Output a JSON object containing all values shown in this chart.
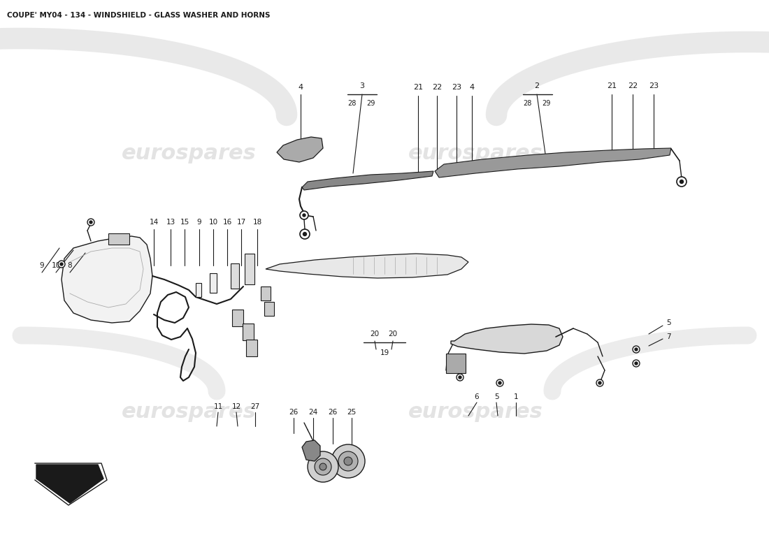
{
  "title": "COUPE' MY04 - 134 - WINDSHIELD - GLASS WASHER AND HORNS",
  "title_fontsize": 7.5,
  "bg_color": "#ffffff",
  "line_color": "#1a1a1a",
  "text_color": "#1a1a1a",
  "watermark_color": "#cccccc",
  "figsize": [
    11.0,
    8.0
  ],
  "dpi": 100,
  "xlim": [
    0,
    1100
  ],
  "ylim": [
    0,
    800
  ]
}
